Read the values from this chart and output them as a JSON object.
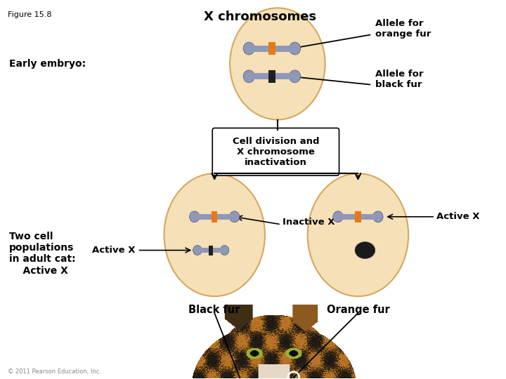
{
  "figure_label": "Figure 15.8",
  "background_color": "#ffffff",
  "cell_color": "#f5e0b8",
  "cell_edge_color": "#d4a860",
  "chrom_body_color": "#9098b8",
  "chrom_orange_color": "#e87818",
  "chrom_black_color": "#202020",
  "labels": {
    "figure": "Figure 15.8",
    "x_chromosomes": "X chromosomes",
    "allele_orange": "Allele for\norange fur",
    "allele_black": "Allele for\nblack fur",
    "cell_division": "Cell division and\nX chromosome\ninactivation",
    "two_cell": "Two cell\npopulations\nin adult cat:",
    "active_x_left": "Active X",
    "inactive_x": "Inactive X",
    "active_x_right": "Active X",
    "black_fur": "Black fur",
    "orange_fur": "Orange fur",
    "copyright": "© 2011 Pearson Education, Inc."
  }
}
